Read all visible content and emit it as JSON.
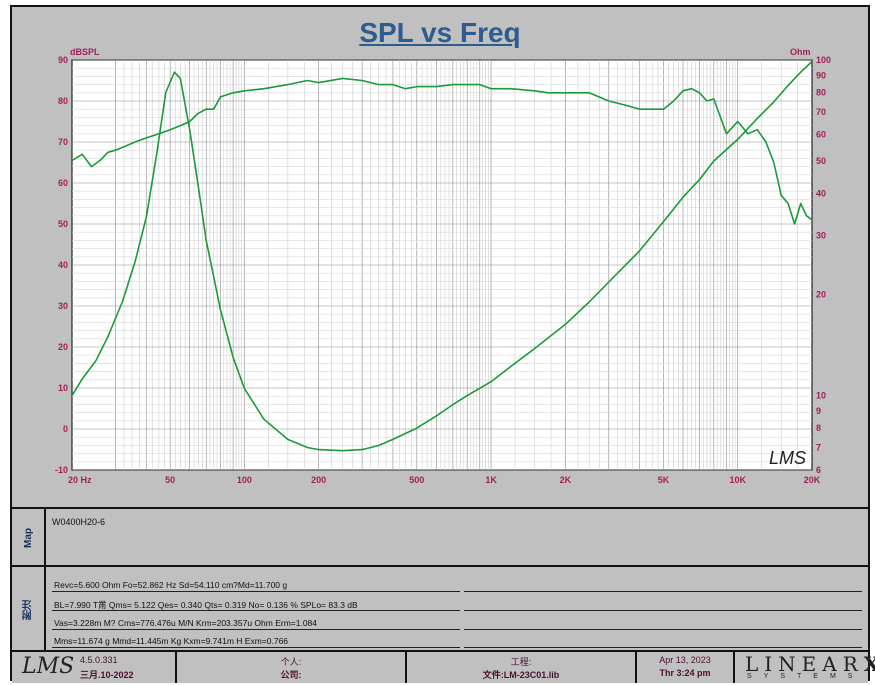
{
  "chart_data": {
    "type": "line",
    "title": "SPL vs Freq",
    "ylabel": "dBSPL",
    "y2label": "Ohm",
    "x_scale": "log",
    "xlim": [
      20,
      20000
    ],
    "ylim": [
      -10,
      90
    ],
    "y2lim": [
      6,
      100
    ],
    "y2_scale": "log",
    "grid": true,
    "x_ticks": [
      {
        "v": 20,
        "label": "20  Hz"
      },
      {
        "v": 50,
        "label": "50"
      },
      {
        "v": 100,
        "label": "100"
      },
      {
        "v": 200,
        "label": "200"
      },
      {
        "v": 500,
        "label": "500"
      },
      {
        "v": 1000,
        "label": "1K"
      },
      {
        "v": 2000,
        "label": "2K"
      },
      {
        "v": 5000,
        "label": "5K"
      },
      {
        "v": 10000,
        "label": "10K"
      },
      {
        "v": 20000,
        "label": "20K"
      }
    ],
    "y_ticks": [
      90,
      80,
      70,
      60,
      50,
      40,
      30,
      20,
      10,
      0,
      -10
    ],
    "y2_ticks": [
      100,
      90,
      80,
      70,
      60,
      50,
      40,
      30,
      20,
      10,
      9,
      8,
      7,
      6
    ],
    "series": [
      {
        "axis": "y",
        "color": "#1a9a3a",
        "x": [
          20,
          22,
          24,
          26,
          28,
          30,
          33,
          36,
          40,
          45,
          50,
          55,
          60,
          65,
          70,
          75,
          80,
          90,
          100,
          120,
          150,
          180,
          200,
          250,
          300,
          350,
          400,
          450,
          500,
          600,
          700,
          800,
          900,
          1000,
          1200,
          1500,
          1700,
          2000,
          2500,
          3000,
          3500,
          4000,
          4500,
          5000,
          5500,
          6000,
          6500,
          7000,
          7500,
          8000,
          9000,
          10000,
          11000,
          12000,
          13000,
          14000,
          15000,
          16000,
          17000,
          18000,
          19000,
          20000
        ],
        "values": [
          65.5,
          67,
          64,
          65.5,
          67.5,
          68,
          69,
          70,
          71,
          72,
          73,
          74,
          75,
          77,
          78,
          78,
          81,
          82,
          82.5,
          83,
          84,
          85,
          84.5,
          85.5,
          85,
          84,
          84,
          83,
          83.5,
          83.5,
          84,
          84,
          84,
          83,
          83,
          82.5,
          82,
          82,
          82,
          80,
          79,
          78,
          78,
          78,
          80,
          82.5,
          83,
          82,
          80,
          80.5,
          72,
          75,
          72,
          73,
          70,
          65,
          57,
          55,
          50,
          55,
          52,
          51
        ]
      },
      {
        "axis": "y2",
        "color": "#1a9a3a",
        "x": [
          20,
          22,
          25,
          28,
          32,
          36,
          40,
          44,
          48,
          52,
          55,
          60,
          65,
          70,
          80,
          90,
          100,
          120,
          150,
          180,
          200,
          250,
          300,
          350,
          400,
          500,
          600,
          700,
          800,
          1000,
          1200,
          1500,
          2000,
          2500,
          3000,
          4000,
          5000,
          6000,
          7000,
          8000,
          10000,
          12000,
          14000,
          16000,
          18000,
          20000
        ],
        "values": [
          10,
          11.2,
          12.7,
          15,
          19,
          25,
          34,
          52,
          80,
          92,
          88,
          62,
          42,
          29,
          18,
          13,
          10.5,
          8.5,
          7.4,
          7.0,
          6.9,
          6.85,
          6.9,
          7.1,
          7.4,
          8.0,
          8.7,
          9.4,
          10.0,
          11.0,
          12.2,
          13.8,
          16.3,
          19.0,
          21.8,
          27,
          33,
          39,
          44,
          50,
          58,
          67,
          75,
          84,
          92,
          99
        ]
      }
    ]
  },
  "map": {
    "label": "Map",
    "text": "W0400H20-6"
  },
  "notes": {
    "label": "附注",
    "lines": [
      "Revc=5.600 Ohm  Fo=52.862 Hz  Sd=54.110 cm?Md=11.700 g",
      "BL=7.990 T黹  Qms= 5.122  Qes= 0.340  Qts= 0.319  No= 0.136 %  SPLo= 83.3 dB",
      "Vas=3.228m M? Cms=776.476u M/N  Krm=203.357u Ohm  Erm=1.084",
      "Mms=11.674 g  Mmd=11.445m Kg  Kxm=9.741m H  Exm=0.766"
    ]
  },
  "footer": {
    "logo": "LMS",
    "version": "4.5.0.331",
    "version_date": "三月.10-2022",
    "person_label": "个人:",
    "company_label": "公司:",
    "project_label": "工程:",
    "file_label": "文件:LM-23C01.lib",
    "date": "Apr 13, 2023",
    "time": "Thr  3:24 pm",
    "brand": "LINEAR",
    "brand_x": "X",
    "brand_sub": "SYSTEMS"
  },
  "watermark": "LMS",
  "colors": {
    "curve": "#1a9a3a",
    "axis_label": "#a0205a",
    "title": "#2c5c90"
  }
}
